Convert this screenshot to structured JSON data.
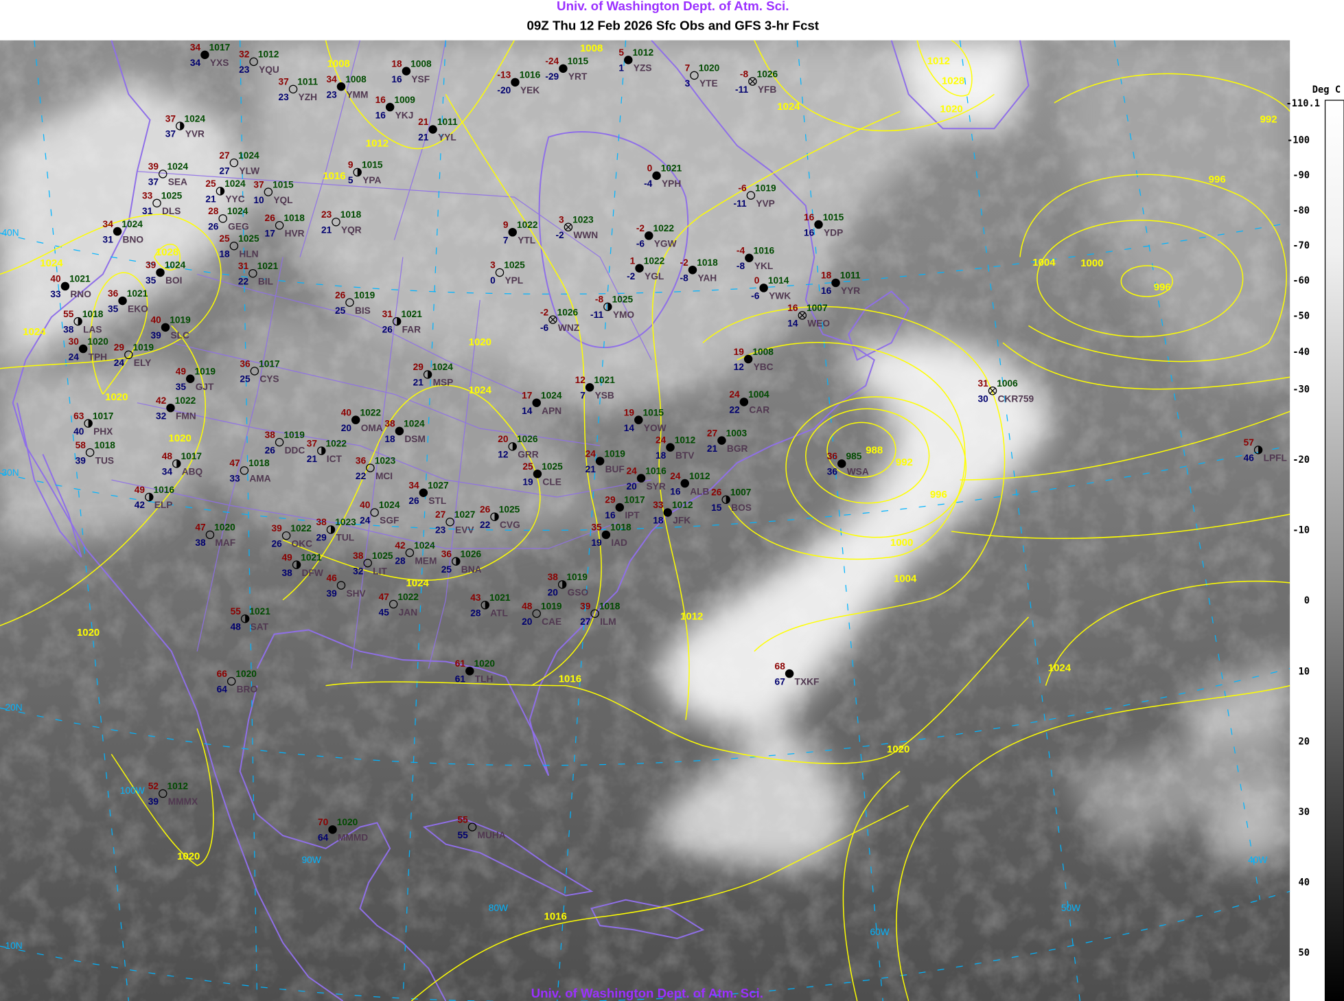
{
  "header": {
    "org": "Univ. of Washington Dept. of Atm. Sci.",
    "title": "09Z Thu 12 Feb 2026 Sfc Obs and GFS 3-hr Fcst"
  },
  "footer": {
    "org": "Univ. of Washington Dept. of Atm. Sci."
  },
  "colorbar": {
    "unit": "Deg C",
    "max_label": "-110.1",
    "ticks": [
      "-100",
      "-90",
      "-80",
      "-70",
      "-60",
      "-50",
      "-40",
      "-30",
      "-20",
      "-10",
      "0",
      "10",
      "20",
      "30",
      "40",
      "50"
    ]
  },
  "colors": {
    "isobars": "#ffff00",
    "coastlines": "#8f6fe8",
    "latlon_grid": "#00b4ff",
    "temperature": "#8b0000",
    "dewpoint": "#00006e",
    "pressure": "#004a00",
    "station_id": "#503850",
    "header_org": "#9b30ff"
  },
  "isobar_labels": [
    "1008",
    "1008",
    "1012",
    "1028",
    "1020",
    "1024",
    "992",
    "996",
    "1004",
    "1000",
    "996",
    "988",
    "992",
    "996",
    "1000",
    "1004",
    "1012",
    "1016",
    "1020",
    "1024",
    "1024",
    "1020",
    "1020",
    "1016",
    "1028",
    "1024",
    "1024",
    "1020",
    "1020",
    "1012",
    "1016",
    "1020",
    "1024"
  ],
  "grid_labels": [
    "40N",
    "30N",
    "20N",
    "10N",
    "100W",
    "90W",
    "80W",
    "60W",
    "50W",
    "40W"
  ],
  "stations": [
    {
      "id": "YXS",
      "temp": "34",
      "dewpoint": "34",
      "pressure": "1017",
      "sky": "full"
    },
    {
      "id": "YQU",
      "temp": "32",
      "dewpoint": "23",
      "pressure": "1012",
      "sky": "clear"
    },
    {
      "id": "YZH",
      "temp": "37",
      "dewpoint": "23",
      "pressure": "1011",
      "sky": "clear"
    },
    {
      "id": "YMM",
      "temp": "34",
      "dewpoint": "23",
      "pressure": "1008",
      "sky": "full"
    },
    {
      "id": "YSF",
      "temp": "18",
      "dewpoint": "16",
      "pressure": "1008",
      "sky": "full"
    },
    {
      "id": "YKJ",
      "temp": "16",
      "dewpoint": "16",
      "pressure": "1009",
      "sky": "full"
    },
    {
      "id": "YVR",
      "temp": "37",
      "dewpoint": "37",
      "pressure": "1024",
      "sky": "half"
    },
    {
      "id": "YLW",
      "temp": "27",
      "dewpoint": "27",
      "pressure": "1024",
      "sky": "clear"
    },
    {
      "id": "SEA",
      "temp": "39",
      "dewpoint": "37",
      "pressure": "1024",
      "sky": "clear"
    },
    {
      "id": "YYC",
      "temp": "25",
      "dewpoint": "21",
      "pressure": "1024",
      "sky": "half"
    },
    {
      "id": "DLS",
      "temp": "33",
      "dewpoint": "31",
      "pressure": "1025",
      "sky": "clear"
    },
    {
      "id": "GEG",
      "temp": "28",
      "dewpoint": "26",
      "pressure": "1024",
      "sky": "clear"
    },
    {
      "id": "YQL",
      "temp": "37",
      "dewpoint": "10",
      "pressure": "1015",
      "sky": "clear"
    },
    {
      "id": "BNO",
      "temp": "34",
      "dewpoint": "31",
      "pressure": "1024",
      "sky": "full"
    },
    {
      "id": "BOI",
      "temp": "39",
      "dewpoint": "35",
      "pressure": "1024",
      "sky": "full"
    },
    {
      "id": "RNO",
      "temp": "40",
      "dewpoint": "33",
      "pressure": "1021",
      "sky": "full"
    },
    {
      "id": "EKO",
      "temp": "36",
      "dewpoint": "35",
      "pressure": "1021",
      "sky": "full"
    },
    {
      "id": "SLC",
      "temp": "40",
      "dewpoint": "39",
      "pressure": "1019",
      "sky": "full"
    },
    {
      "id": "HLN",
      "temp": "25",
      "dewpoint": "18",
      "pressure": "1025",
      "sky": "clear"
    },
    {
      "id": "BIL",
      "temp": "31",
      "dewpoint": "22",
      "pressure": "1021",
      "sky": "clear"
    },
    {
      "id": "HVR",
      "temp": "26",
      "dewpoint": "17",
      "pressure": "1018",
      "sky": "clear"
    },
    {
      "id": "YQR",
      "temp": "23",
      "dewpoint": "21",
      "pressure": "1018",
      "sky": "clear"
    },
    {
      "id": "BIS",
      "temp": "26",
      "dewpoint": "25",
      "pressure": "1019",
      "sky": "clear"
    },
    {
      "id": "FAR",
      "temp": "31",
      "dewpoint": "26",
      "pressure": "1021",
      "sky": "half"
    },
    {
      "id": "MSP",
      "temp": "29",
      "dewpoint": "21",
      "pressure": "1024",
      "sky": "half"
    },
    {
      "id": "YYL",
      "temp": "21",
      "dewpoint": "21",
      "pressure": "1011",
      "sky": "full"
    },
    {
      "id": "YPA",
      "temp": "9",
      "dewpoint": "5",
      "pressure": "1015",
      "sky": "half"
    },
    {
      "id": "YEK",
      "temp": "-13",
      "dewpoint": "-20",
      "pressure": "1016",
      "sky": "full"
    },
    {
      "id": "YRT",
      "temp": "-24",
      "dewpoint": "-29",
      "pressure": "1015",
      "sky": "full"
    },
    {
      "id": "YZS",
      "temp": "5",
      "dewpoint": "1",
      "pressure": "1012",
      "sky": "full"
    },
    {
      "id": "YTE",
      "temp": "7",
      "dewpoint": "3",
      "pressure": "1020",
      "sky": "clear"
    },
    {
      "id": "YFB",
      "temp": "-8",
      "dewpoint": "-11",
      "pressure": "1026",
      "sky": "obscured"
    },
    {
      "id": "YPH",
      "temp": "0",
      "dewpoint": "-4",
      "pressure": "1021",
      "sky": "full"
    },
    {
      "id": "YVP",
      "temp": "-6",
      "dewpoint": "-11",
      "pressure": "1019",
      "sky": "clear"
    },
    {
      "id": "YDP",
      "temp": "16",
      "dewpoint": "16",
      "pressure": "1015",
      "sky": "full"
    },
    {
      "id": "YGW",
      "temp": "-2",
      "dewpoint": "-6",
      "pressure": "1022",
      "sky": "full"
    },
    {
      "id": "YGL",
      "temp": "1",
      "dewpoint": "-2",
      "pressure": "1022",
      "sky": "full"
    },
    {
      "id": "YAH",
      "temp": "-2",
      "dewpoint": "-8",
      "pressure": "1018",
      "sky": "full"
    },
    {
      "id": "YKL",
      "temp": "-4",
      "dewpoint": "-8",
      "pressure": "1016",
      "sky": "full"
    },
    {
      "id": "YWK",
      "temp": "0",
      "dewpoint": "-6",
      "pressure": "1014",
      "sky": "full"
    },
    {
      "id": "YYR",
      "temp": "18",
      "dewpoint": "16",
      "pressure": "1011",
      "sky": "full"
    },
    {
      "id": "WEO",
      "temp": "16",
      "dewpoint": "14",
      "pressure": "1007",
      "sky": "obscured"
    },
    {
      "id": "YTL",
      "temp": "9",
      "dewpoint": "7",
      "pressure": "1022",
      "sky": "full"
    },
    {
      "id": "WWN",
      "temp": "3",
      "dewpoint": "-2",
      "pressure": "1023",
      "sky": "obscured"
    },
    {
      "id": "YPL",
      "temp": "3",
      "dewpoint": "0",
      "pressure": "1025",
      "sky": "clear"
    },
    {
      "id": "YMO",
      "temp": "-8",
      "dewpoint": "-11",
      "pressure": "1025",
      "sky": "half"
    },
    {
      "id": "WNZ",
      "temp": "-2",
      "dewpoint": "-6",
      "pressure": "1026",
      "sky": "obscured"
    },
    {
      "id": "YSB",
      "temp": "12",
      "dewpoint": "7",
      "pressure": "1021",
      "sky": "full"
    },
    {
      "id": "APN",
      "temp": "17",
      "dewpoint": "14",
      "pressure": "1024",
      "sky": "full"
    },
    {
      "id": "YOW",
      "temp": "19",
      "dewpoint": "14",
      "pressure": "1015",
      "sky": "full"
    },
    {
      "id": "BTV",
      "temp": "24",
      "dewpoint": "18",
      "pressure": "1012",
      "sky": "full"
    },
    {
      "id": "BUF",
      "temp": "24",
      "dewpoint": "21",
      "pressure": "1019",
      "sky": "full"
    },
    {
      "id": "SYR",
      "temp": "24",
      "dewpoint": "20",
      "pressure": "1016",
      "sky": "full"
    },
    {
      "id": "ALB",
      "temp": "24",
      "dewpoint": "16",
      "pressure": "1012",
      "sky": "full"
    },
    {
      "id": "IPT",
      "temp": "29",
      "dewpoint": "16",
      "pressure": "1017",
      "sky": "full"
    },
    {
      "id": "BGR",
      "temp": "27",
      "dewpoint": "21",
      "pressure": "1003",
      "sky": "full"
    },
    {
      "id": "CAR",
      "temp": "24",
      "dewpoint": "22",
      "pressure": "1004",
      "sky": "full"
    },
    {
      "id": "YBC",
      "temp": "19",
      "dewpoint": "12",
      "pressure": "1008",
      "sky": "full"
    },
    {
      "id": "IAD",
      "temp": "35",
      "dewpoint": "19",
      "pressure": "1018",
      "sky": "full"
    },
    {
      "id": "JFK",
      "temp": "33",
      "dewpoint": "18",
      "pressure": "1012",
      "sky": "full"
    },
    {
      "id": "BOS",
      "temp": "26",
      "dewpoint": "15",
      "pressure": "1007",
      "sky": "half"
    },
    {
      "id": "CLE",
      "temp": "25",
      "dewpoint": "19",
      "pressure": "1025",
      "sky": "full"
    },
    {
      "id": "GRR",
      "temp": "20",
      "dewpoint": "12",
      "pressure": "1026",
      "sky": "half"
    },
    {
      "id": "CVG",
      "temp": "26",
      "dewpoint": "22",
      "pressure": "1025",
      "sky": "half"
    },
    {
      "id": "STL",
      "temp": "34",
      "dewpoint": "26",
      "pressure": "1027",
      "sky": "full"
    },
    {
      "id": "EVV",
      "temp": "27",
      "dewpoint": "23",
      "pressure": "1027",
      "sky": "clear"
    },
    {
      "id": "BNA",
      "temp": "36",
      "dewpoint": "25",
      "pressure": "1026",
      "sky": "half"
    },
    {
      "id": "GSO",
      "temp": "38",
      "dewpoint": "20",
      "pressure": "1019",
      "sky": "half"
    },
    {
      "id": "ATL",
      "temp": "43",
      "dewpoint": "28",
      "pressure": "1021",
      "sky": "half"
    },
    {
      "id": "CAE",
      "temp": "48",
      "dewpoint": "20",
      "pressure": "1019",
      "sky": "clear"
    },
    {
      "id": "ILM",
      "temp": "39",
      "dewpoint": "27",
      "pressure": "1018",
      "sky": "clear"
    },
    {
      "id": "DSM",
      "temp": "38",
      "dewpoint": "18",
      "pressure": "1024",
      "sky": "full"
    },
    {
      "id": "OMA",
      "temp": "40",
      "dewpoint": "20",
      "pressure": "1022",
      "sky": "full"
    },
    {
      "id": "MCI",
      "temp": "36",
      "dewpoint": "22",
      "pressure": "1023",
      "sky": "clear"
    },
    {
      "id": "SGF",
      "temp": "40",
      "dewpoint": "24",
      "pressure": "1024",
      "sky": "clear"
    },
    {
      "id": "TUL",
      "temp": "38",
      "dewpoint": "29",
      "pressure": "1023",
      "sky": "half"
    },
    {
      "id": "OKC",
      "temp": "39",
      "dewpoint": "26",
      "pressure": "1022",
      "sky": "clear"
    },
    {
      "id": "DFW",
      "temp": "49",
      "dewpoint": "38",
      "pressure": "1021",
      "sky": "half"
    },
    {
      "id": "MEM",
      "temp": "42",
      "dewpoint": "28",
      "pressure": "1024",
      "sky": "clear"
    },
    {
      "id": "LIT",
      "temp": "38",
      "dewpoint": "32",
      "pressure": "1025",
      "sky": "clear"
    },
    {
      "id": "SHV",
      "temp": "46",
      "dewpoint": "39",
      "pressure": "",
      "sky": "clear"
    },
    {
      "id": "JAN",
      "temp": "47",
      "dewpoint": "45",
      "pressure": "1022",
      "sky": "clear"
    },
    {
      "id": "CYS",
      "temp": "36",
      "dewpoint": "25",
      "pressure": "1017",
      "sky": "clear"
    },
    {
      "id": "ICT",
      "temp": "37",
      "dewpoint": "21",
      "pressure": "1022",
      "sky": "half"
    },
    {
      "id": "DDC",
      "temp": "38",
      "dewpoint": "26",
      "pressure": "1019",
      "sky": "clear"
    },
    {
      "id": "AMA",
      "temp": "47",
      "dewpoint": "33",
      "pressure": "1018",
      "sky": "clear"
    },
    {
      "id": "ABQ",
      "temp": "48",
      "dewpoint": "34",
      "pressure": "1017",
      "sky": "half"
    },
    {
      "id": "GJT",
      "temp": "49",
      "dewpoint": "35",
      "pressure": "1019",
      "sky": "full"
    },
    {
      "id": "FMN",
      "temp": "42",
      "dewpoint": "32",
      "pressure": "1022",
      "sky": "full"
    },
    {
      "id": "PHX",
      "temp": "63",
      "dewpoint": "40",
      "pressure": "1017",
      "sky": "half"
    },
    {
      "id": "TUS",
      "temp": "58",
      "dewpoint": "39",
      "pressure": "1018",
      "sky": "clear"
    },
    {
      "id": "ELP",
      "temp": "49",
      "dewpoint": "42",
      "pressure": "1016",
      "sky": "half"
    },
    {
      "id": "MAF",
      "temp": "47",
      "dewpoint": "38",
      "pressure": "1020",
      "sky": "clear"
    },
    {
      "id": "SAT",
      "temp": "55",
      "dewpoint": "48",
      "pressure": "1021",
      "sky": "half"
    },
    {
      "id": "LAS",
      "temp": "55",
      "dewpoint": "38",
      "pressure": "1018",
      "sky": "half"
    },
    {
      "id": "TLH",
      "temp": "61",
      "dewpoint": "61",
      "pressure": "1020",
      "sky": "full"
    },
    {
      "id": "TPH",
      "temp": "30",
      "dewpoint": "24",
      "pressure": "1020",
      "sky": "full"
    },
    {
      "id": "ELY",
      "temp": "29",
      "dewpoint": "24",
      "pressure": "1019",
      "sky": "clear"
    },
    {
      "id": "BRO",
      "temp": "66",
      "dewpoint": "64",
      "pressure": "1020",
      "sky": "clear"
    },
    {
      "id": "MUHA",
      "temp": "55",
      "dewpoint": "55",
      "pressure": "",
      "sky": "clear"
    },
    {
      "id": "TXKF",
      "temp": "68",
      "dewpoint": "67",
      "pressure": "",
      "sky": "full"
    },
    {
      "id": "LPFL",
      "temp": "57",
      "dewpoint": "46",
      "pressure": "",
      "sky": "half"
    },
    {
      "id": "CKR759",
      "temp": "31",
      "dewpoint": "30",
      "pressure": "1006",
      "sky": "obscured"
    },
    {
      "id": "WSA",
      "temp": "36",
      "dewpoint": "36",
      "pressure": "985",
      "sky": "full"
    },
    {
      "id": "MMMX",
      "temp": "52",
      "dewpoint": "39",
      "pressure": "1012",
      "sky": "clear"
    },
    {
      "id": "MMMD",
      "temp": "70",
      "dewpoint": "64",
      "pressure": "1020",
      "sky": "full"
    }
  ]
}
